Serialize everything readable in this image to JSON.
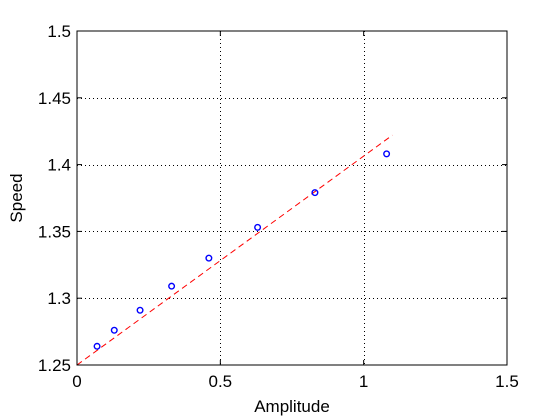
{
  "chart_data": {
    "type": "scatter",
    "title": "",
    "xlabel": "Amplitude",
    "ylabel": "Speed",
    "xlim": [
      0,
      1.5
    ],
    "ylim": [
      1.25,
      1.5
    ],
    "xticks": [
      0,
      0.5,
      1,
      1.5
    ],
    "yticks": [
      1.25,
      1.3,
      1.35,
      1.4,
      1.45,
      1.5
    ],
    "xtick_labels": [
      "0",
      "0.5",
      "1",
      "1.5"
    ],
    "ytick_labels": [
      "1.25",
      "1.3",
      "1.35",
      "1.4",
      "1.45",
      "1.5"
    ],
    "grid": true,
    "legend": "none",
    "series": [
      {
        "kind": "scatter",
        "marker": "circle",
        "color": "#0000ff",
        "x": [
          0.07,
          0.13,
          0.22,
          0.33,
          0.46,
          0.63,
          0.83,
          1.08
        ],
        "y": [
          1.264,
          1.276,
          1.291,
          1.309,
          1.33,
          1.353,
          1.379,
          1.408
        ]
      },
      {
        "kind": "line",
        "style": "dashed",
        "color": "#ff0000",
        "x": [
          0.0,
          1.1
        ],
        "y": [
          1.25,
          1.422
        ]
      }
    ]
  }
}
